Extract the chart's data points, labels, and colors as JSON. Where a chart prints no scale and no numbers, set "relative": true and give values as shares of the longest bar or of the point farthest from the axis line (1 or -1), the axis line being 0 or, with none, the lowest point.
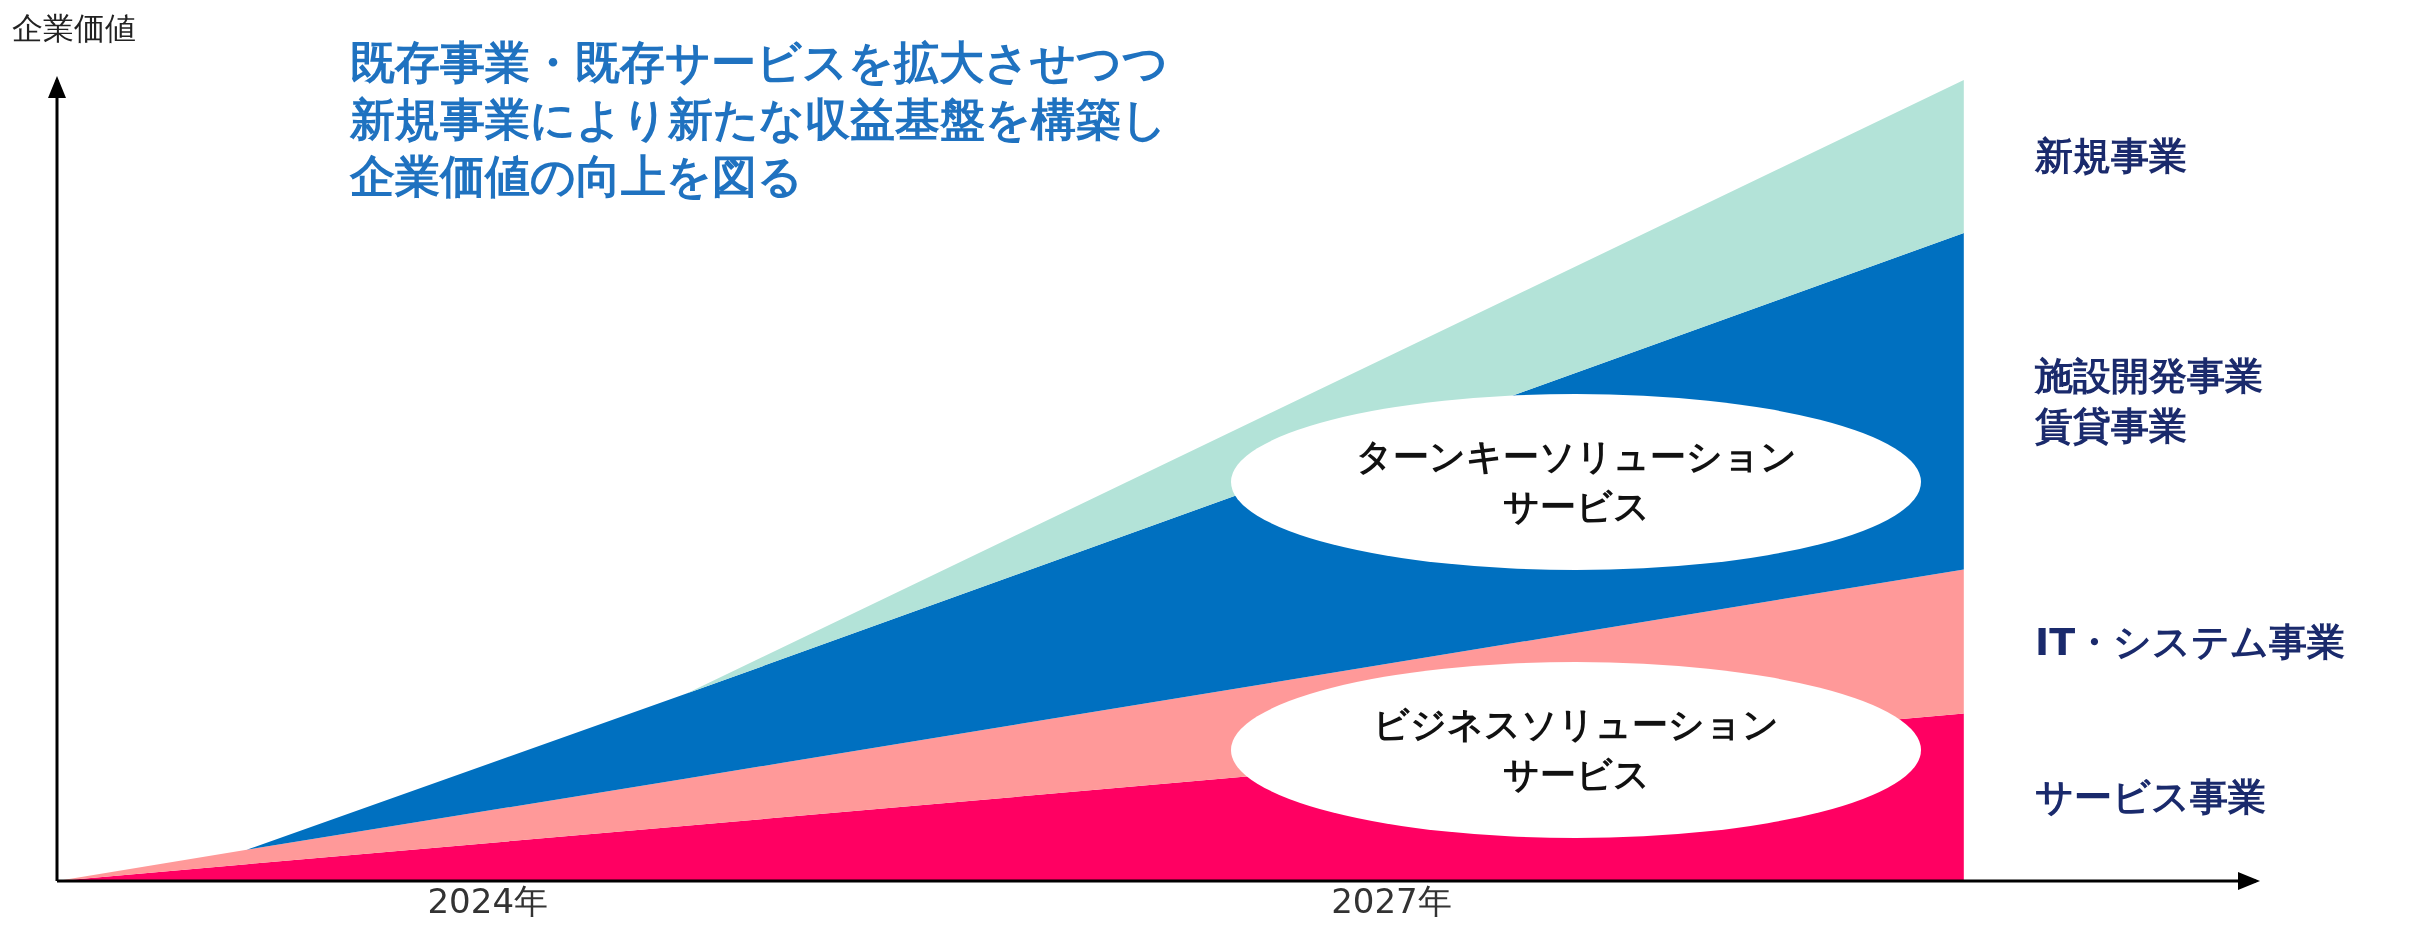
{
  "chart_data": {
    "type": "area",
    "stacked": true,
    "relative": true,
    "title": "既存事業・既存サービスを拡大させつつ新規事業により新たな収益基盤を構築し企業価値の向上を図る",
    "ylabel": "企業価値",
    "x": [
      2022.57,
      2023.2,
      2024.66,
      2028.9
    ],
    "xlim": [
      2022.57,
      2029.87
    ],
    "xticks": [
      {
        "value": 2024,
        "label": "2024年"
      },
      {
        "value": 2027,
        "label": "2027年"
      }
    ],
    "series": [
      {
        "name": "サービス事業",
        "color": "#ff0062",
        "values": [
          0,
          0.021,
          0.069,
          0.209
        ]
      },
      {
        "name": "IT・システム事業",
        "color": "#ff9999",
        "values": [
          0,
          0.018,
          0.059,
          0.18
        ]
      },
      {
        "name": "施設開発事業賃貸事業",
        "color": "#0070c0",
        "values": [
          0,
          0,
          0.106,
          0.42
        ]
      },
      {
        "name": "新規事業",
        "color": "#b3e3d8",
        "values": [
          0,
          0,
          0,
          0.191
        ]
      }
    ],
    "annotations": [
      "ターンキーソリューションサービス",
      "ビジネスソリューションサービス"
    ],
    "grid": false,
    "legend": false
  }
}
